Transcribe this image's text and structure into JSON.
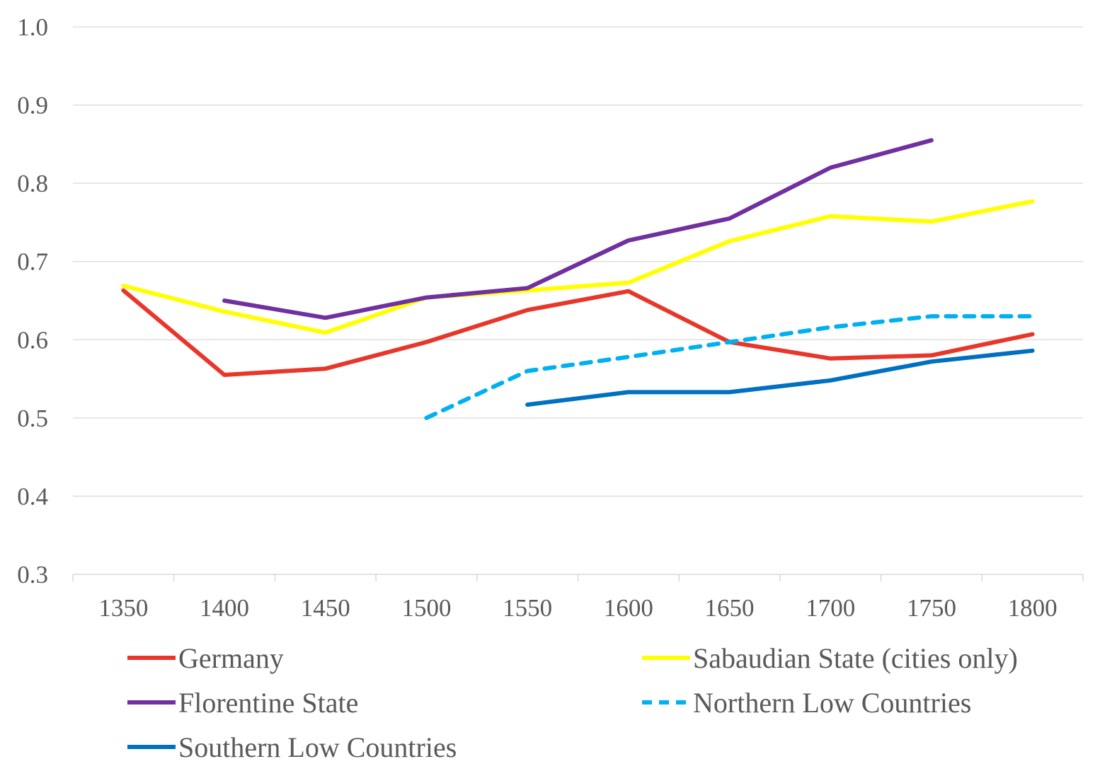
{
  "chart_data": {
    "type": "line",
    "title": "",
    "xlabel": "",
    "ylabel": "",
    "categories": [
      "1350",
      "1400",
      "1450",
      "1500",
      "1550",
      "1600",
      "1650",
      "1700",
      "1750",
      "1800"
    ],
    "ylim": [
      0.3,
      1.0
    ],
    "yticks": [
      "0.3",
      "0.4",
      "0.5",
      "0.6",
      "0.7",
      "0.8",
      "0.9",
      "1.0"
    ],
    "grid": true,
    "legend_placement": "bottom",
    "series": [
      {
        "name": "Germany",
        "color": "#E8372A",
        "dashed": false,
        "values": [
          0.663,
          0.555,
          0.563,
          0.597,
          0.638,
          0.662,
          0.597,
          0.576,
          0.58,
          0.607
        ]
      },
      {
        "name": "Sabaudian State (cities only)",
        "color": "#FFFF00",
        "dashed": false,
        "values": [
          0.669,
          0.636,
          0.609,
          0.654,
          0.663,
          0.673,
          0.726,
          0.758,
          0.751,
          0.777
        ]
      },
      {
        "name": "Florentine State",
        "color": "#7030A0",
        "dashed": false,
        "values": [
          null,
          0.65,
          0.628,
          0.654,
          0.666,
          0.727,
          0.755,
          0.82,
          0.855,
          null
        ]
      },
      {
        "name": "Northern Low Countries",
        "color": "#00B0F0",
        "dashed": true,
        "values": [
          null,
          null,
          null,
          0.5,
          0.56,
          0.578,
          0.597,
          0.616,
          0.63,
          0.63
        ]
      },
      {
        "name": "Southern Low Countries",
        "color": "#0070C0",
        "dashed": false,
        "values": [
          null,
          null,
          null,
          null,
          0.517,
          0.533,
          0.533,
          0.548,
          0.572,
          0.586
        ]
      }
    ]
  }
}
